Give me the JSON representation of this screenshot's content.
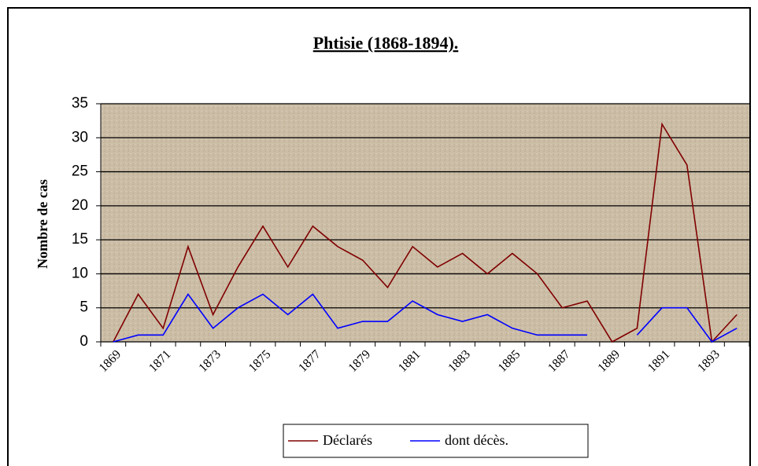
{
  "chart_data": {
    "type": "line",
    "title": "Phtisie (1868-1894).",
    "ylabel": "Nombre de cas",
    "categories": [
      "1869",
      null,
      "1871",
      null,
      "1873",
      null,
      "1875",
      null,
      "1877",
      null,
      "1879",
      null,
      "1881",
      null,
      "1883",
      null,
      "1885",
      null,
      "1887",
      null,
      "1889",
      null,
      "1891",
      null,
      "1893",
      null
    ],
    "series": [
      {
        "name": "Déclarés",
        "color": "#800000",
        "values": [
          0,
          7,
          2,
          14,
          4,
          11,
          17,
          11,
          17,
          14,
          12,
          8,
          14,
          11,
          13,
          10,
          13,
          10,
          5,
          6,
          0,
          2,
          32,
          26,
          0,
          4
        ]
      },
      {
        "name": "dont décès.",
        "color": "#0000ff",
        "values": [
          0,
          1,
          1,
          7,
          2,
          5,
          7,
          4,
          7,
          2,
          3,
          3,
          6,
          4,
          3,
          4,
          2,
          1,
          1,
          1,
          null,
          1,
          5,
          5,
          0,
          2
        ]
      }
    ],
    "ylim": [
      0,
      35
    ],
    "yticks": [
      0,
      5,
      10,
      15,
      20,
      25,
      30,
      35
    ],
    "grid": true,
    "legend": "bottom"
  }
}
